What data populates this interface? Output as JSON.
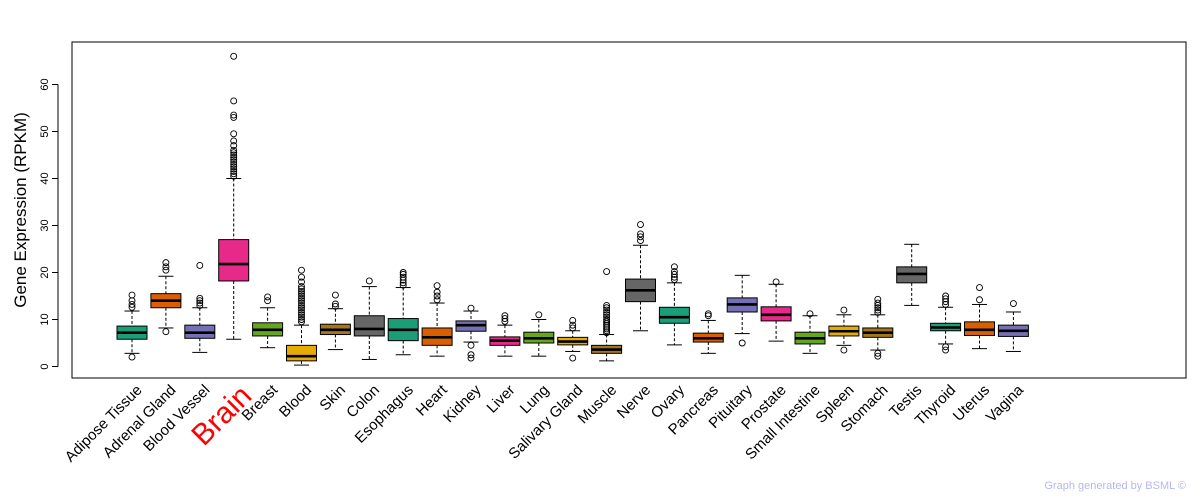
{
  "chart_data": {
    "type": "boxplot",
    "title": "",
    "xlabel": "",
    "ylabel": "Gene Expression (RPKM)",
    "ylim": [
      0,
      70
    ],
    "yticks": [
      0,
      10,
      20,
      30,
      40,
      50,
      60
    ],
    "grid": false,
    "highlight": "Brain",
    "series": [
      {
        "name": "Adipose Tissue",
        "color": "#1b9e77",
        "whisker_low": 2.8,
        "q1": 5.8,
        "median": 7.2,
        "q3": 8.6,
        "whisker_high": 11.8,
        "outliers": [
          2.0,
          12.6,
          13.2,
          14.0,
          15.2
        ]
      },
      {
        "name": "Adrenal Gland",
        "color": "#d95f02",
        "whisker_low": 8.2,
        "q1": 12.5,
        "median": 14.0,
        "q3": 15.5,
        "whisker_high": 19.2,
        "outliers": [
          7.4,
          20.5,
          21.2,
          22.1
        ]
      },
      {
        "name": "Blood Vessel",
        "color": "#7570b3",
        "whisker_low": 3.0,
        "q1": 6.0,
        "median": 7.2,
        "q3": 8.8,
        "whisker_high": 12.5,
        "outliers": [
          13.0,
          13.5,
          14.0,
          14.5,
          21.5
        ]
      },
      {
        "name": "Brain",
        "color": "#e7298a",
        "whisker_low": 5.8,
        "q1": 18.2,
        "median": 21.8,
        "q3": 27.0,
        "whisker_high": 40.0,
        "outliers": [
          40.5,
          41.0,
          41.5,
          42.0,
          42.5,
          43.0,
          43.5,
          44.0,
          44.5,
          45.0,
          45.5,
          46.0,
          47.0,
          48.0,
          49.5,
          53.0,
          53.5,
          56.5,
          66.0
        ]
      },
      {
        "name": "Breast",
        "color": "#66a61e",
        "whisker_low": 4.0,
        "q1": 6.5,
        "median": 7.8,
        "q3": 9.3,
        "whisker_high": 12.5,
        "outliers": [
          14.0,
          14.8
        ]
      },
      {
        "name": "Blood",
        "color": "#e6ab02",
        "whisker_low": 0.3,
        "q1": 1.2,
        "median": 2.2,
        "q3": 4.5,
        "whisker_high": 8.8,
        "outliers": [
          9.5,
          10.0,
          10.5,
          11.0,
          11.5,
          12.0,
          12.5,
          13.0,
          13.5,
          14.0,
          14.5,
          15.0,
          15.5,
          16.0,
          16.5,
          17.0,
          18.0,
          19.0,
          20.5
        ]
      },
      {
        "name": "Skin",
        "color": "#a6761d",
        "whisker_low": 3.6,
        "q1": 6.8,
        "median": 7.8,
        "q3": 9.0,
        "whisker_high": 12.3,
        "outliers": [
          12.8,
          13.3,
          15.2
        ]
      },
      {
        "name": "Colon",
        "color": "#666666",
        "whisker_low": 1.5,
        "q1": 6.5,
        "median": 8.0,
        "q3": 10.8,
        "whisker_high": 17.0,
        "outliers": [
          18.2
        ]
      },
      {
        "name": "Esophagus",
        "color": "#1b9e77",
        "whisker_low": 2.5,
        "q1": 5.5,
        "median": 7.8,
        "q3": 10.2,
        "whisker_high": 16.8,
        "outliers": [
          17.3,
          17.8,
          18.4,
          19.0,
          19.6,
          20.0
        ]
      },
      {
        "name": "Heart",
        "color": "#d95f02",
        "whisker_low": 2.2,
        "q1": 4.5,
        "median": 6.2,
        "q3": 8.2,
        "whisker_high": 13.5,
        "outliers": [
          14.2,
          15.0,
          15.8,
          17.2
        ]
      },
      {
        "name": "Kidney",
        "color": "#7570b3",
        "whisker_low": 5.2,
        "q1": 7.5,
        "median": 8.8,
        "q3": 9.7,
        "whisker_high": 11.8,
        "outliers": [
          1.8,
          2.5,
          4.5,
          12.4
        ]
      },
      {
        "name": "Liver",
        "color": "#e7298a",
        "whisker_low": 2.2,
        "q1": 4.5,
        "median": 5.5,
        "q3": 6.3,
        "whisker_high": 8.8,
        "outliers": [
          9.6,
          10.2,
          10.8
        ]
      },
      {
        "name": "Lung",
        "color": "#66a61e",
        "whisker_low": 2.2,
        "q1": 5.0,
        "median": 6.0,
        "q3": 7.3,
        "whisker_high": 10.0,
        "outliers": [
          11.0
        ]
      },
      {
        "name": "Salivary Gland",
        "color": "#e6ab02",
        "whisker_low": 3.2,
        "q1": 4.6,
        "median": 5.3,
        "q3": 6.2,
        "whisker_high": 7.6,
        "outliers": [
          1.8,
          8.2,
          8.8,
          9.8
        ]
      },
      {
        "name": "Muscle",
        "color": "#a6761d",
        "whisker_low": 1.2,
        "q1": 2.8,
        "median": 3.6,
        "q3": 4.5,
        "whisker_high": 6.8,
        "outliers": [
          7.2,
          7.6,
          8.0,
          8.4,
          8.8,
          9.2,
          9.6,
          10.0,
          10.5,
          11.0,
          11.5,
          12.0,
          12.5,
          13.0,
          20.2
        ]
      },
      {
        "name": "Nerve",
        "color": "#666666",
        "whisker_low": 7.6,
        "q1": 13.8,
        "median": 16.2,
        "q3": 18.6,
        "whisker_high": 25.8,
        "outliers": [
          26.8,
          27.6,
          28.2,
          30.2
        ]
      },
      {
        "name": "Ovary",
        "color": "#1b9e77",
        "whisker_low": 4.6,
        "q1": 9.2,
        "median": 10.5,
        "q3": 12.6,
        "whisker_high": 17.8,
        "outliers": [
          18.5,
          19.0,
          19.6,
          20.2,
          21.2
        ]
      },
      {
        "name": "Pancreas",
        "color": "#d95f02",
        "whisker_low": 2.8,
        "q1": 5.2,
        "median": 6.0,
        "q3": 7.1,
        "whisker_high": 9.8,
        "outliers": [
          10.8,
          11.2
        ]
      },
      {
        "name": "Pituitary",
        "color": "#7570b3",
        "whisker_low": 7.0,
        "q1": 11.6,
        "median": 13.2,
        "q3": 14.6,
        "whisker_high": 19.4,
        "outliers": [
          5.0
        ]
      },
      {
        "name": "Prostate",
        "color": "#e7298a",
        "whisker_low": 5.4,
        "q1": 9.7,
        "median": 11.0,
        "q3": 12.7,
        "whisker_high": 17.5,
        "outliers": [
          18.0
        ]
      },
      {
        "name": "Small Intestine",
        "color": "#66a61e",
        "whisker_low": 2.8,
        "q1": 4.8,
        "median": 6.0,
        "q3": 7.3,
        "whisker_high": 10.8,
        "outliers": [
          11.2
        ]
      },
      {
        "name": "Spleen",
        "color": "#e6ab02",
        "whisker_low": 4.5,
        "q1": 6.5,
        "median": 7.5,
        "q3": 8.6,
        "whisker_high": 11.0,
        "outliers": [
          3.5,
          12.0
        ]
      },
      {
        "name": "Stomach",
        "color": "#a6761d",
        "whisker_low": 3.5,
        "q1": 6.2,
        "median": 7.2,
        "q3": 8.2,
        "whisker_high": 11.0,
        "outliers": [
          2.2,
          2.8,
          11.5,
          12.0,
          12.5,
          13.0,
          13.5,
          14.3
        ]
      },
      {
        "name": "Testis",
        "color": "#666666",
        "whisker_low": 13.0,
        "q1": 17.8,
        "median": 19.7,
        "q3": 21.2,
        "whisker_high": 26.0,
        "outliers": []
      },
      {
        "name": "Thyroid",
        "color": "#1b9e77",
        "whisker_low": 4.8,
        "q1": 7.6,
        "median": 8.3,
        "q3": 9.2,
        "whisker_high": 12.6,
        "outliers": [
          3.5,
          4.2,
          13.2,
          13.8,
          14.4,
          15.0
        ]
      },
      {
        "name": "Uterus",
        "color": "#d95f02",
        "whisker_low": 3.8,
        "q1": 6.6,
        "median": 7.8,
        "q3": 9.5,
        "whisker_high": 13.2,
        "outliers": [
          14.2,
          16.8
        ]
      },
      {
        "name": "Vagina",
        "color": "#7570b3",
        "whisker_low": 3.2,
        "q1": 6.4,
        "median": 7.6,
        "q3": 8.8,
        "whisker_high": 11.6,
        "outliers": [
          13.4
        ]
      }
    ]
  },
  "footer": {
    "credit": "Graph generated by BSML ©"
  }
}
